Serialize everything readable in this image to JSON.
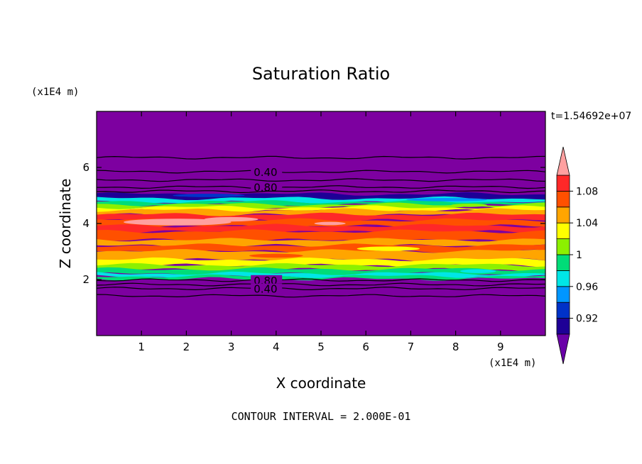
{
  "chart_data": {
    "type": "heatmap",
    "title": "Saturation Ratio",
    "xlabel": "X coordinate",
    "ylabel": "Z coordinate",
    "x_unit": "(x1E4 m)",
    "y_unit": "(x1E4 m)",
    "xlim": [
      0,
      10
    ],
    "ylim": [
      0,
      8
    ],
    "x_ticks": [
      "1",
      "2",
      "3",
      "4",
      "5",
      "6",
      "7",
      "8",
      "9"
    ],
    "y_ticks": [
      "2",
      "4",
      "6"
    ],
    "time_label": "t=1.54692e+07",
    "footer": "CONTOUR INTERVAL = 2.000E-01",
    "colorbar": {
      "levels": [
        0.9,
        0.92,
        0.94,
        0.96,
        0.98,
        1.0,
        1.02,
        1.04,
        1.06,
        1.08,
        1.1
      ],
      "labels": [
        "0.92",
        "0.96",
        "1",
        "1.04",
        "1.08"
      ],
      "label_values": [
        0.92,
        0.96,
        1.0,
        1.04,
        1.08
      ],
      "colors": [
        "#6a00a8",
        "#1e0096",
        "#0032c8",
        "#0096ff",
        "#00e6e6",
        "#00dc78",
        "#8cf000",
        "#ffff00",
        "#ffa500",
        "#ff5000",
        "#ff2828",
        "#ffa0a0"
      ],
      "under_color": "#6a00a8",
      "over_color": "#ffa0a0"
    },
    "field": {
      "background_color": "#7d00a0",
      "bands": [
        {
          "z0": 4.85,
          "z1": 5.05,
          "color": "#1e0096"
        },
        {
          "z0": 4.75,
          "z1": 4.9,
          "color": "#00e6e6"
        },
        {
          "z0": 4.65,
          "z1": 4.78,
          "color": "#00dc78"
        },
        {
          "z0": 4.55,
          "z1": 4.68,
          "color": "#8cf000"
        },
        {
          "z0": 4.45,
          "z1": 4.58,
          "color": "#ffff00"
        },
        {
          "z0": 4.3,
          "z1": 4.48,
          "color": "#ffa500"
        },
        {
          "z0": 4.1,
          "z1": 4.32,
          "color": "#ff2828"
        },
        {
          "z0": 3.9,
          "z1": 4.12,
          "color": "#ff5000"
        },
        {
          "z0": 3.7,
          "z1": 3.92,
          "color": "#ff2828"
        },
        {
          "z0": 3.4,
          "z1": 3.72,
          "color": "#ff5000"
        },
        {
          "z0": 3.2,
          "z1": 3.42,
          "color": "#ffa500"
        },
        {
          "z0": 3.0,
          "z1": 3.22,
          "color": "#ff5000"
        },
        {
          "z0": 2.7,
          "z1": 3.02,
          "color": "#ffa500"
        },
        {
          "z0": 2.5,
          "z1": 2.72,
          "color": "#ffff00"
        },
        {
          "z0": 2.35,
          "z1": 2.52,
          "color": "#8cf000"
        },
        {
          "z0": 2.2,
          "z1": 2.37,
          "color": "#00dc78"
        },
        {
          "z0": 2.1,
          "z1": 2.22,
          "color": "#00e6e6"
        },
        {
          "z0": 2.02,
          "z1": 2.12,
          "color": "#00dc78"
        }
      ],
      "patches": [
        {
          "x": 1.8,
          "z": 4.05,
          "rx": 1.2,
          "rz": 0.12,
          "color": "#ffa0a0"
        },
        {
          "x": 3.0,
          "z": 4.15,
          "rx": 0.6,
          "rz": 0.08,
          "color": "#ffa0a0"
        },
        {
          "x": 5.2,
          "z": 4.0,
          "rx": 0.35,
          "rz": 0.06,
          "color": "#ffa0a0"
        },
        {
          "x": 8.3,
          "z": 4.65,
          "rx": 0.4,
          "rz": 0.06,
          "color": "#8cf000"
        },
        {
          "x": 6.5,
          "z": 3.1,
          "rx": 0.7,
          "rz": 0.08,
          "color": "#ffff00"
        },
        {
          "x": 4.0,
          "z": 2.85,
          "rx": 0.6,
          "rz": 0.07,
          "color": "#ff5000"
        },
        {
          "x": 8.5,
          "z": 2.3,
          "rx": 0.4,
          "rz": 0.07,
          "color": "#00e6e6"
        },
        {
          "x": 2.5,
          "z": 5.0,
          "rx": 0.8,
          "rz": 0.06,
          "color": "#0032c8"
        },
        {
          "x": 7.8,
          "z": 4.85,
          "rx": 0.9,
          "rz": 0.06,
          "color": "#0096ff"
        }
      ]
    },
    "contours": [
      {
        "level": "0.40",
        "z": 6.35
      },
      {
        "level": "0.40",
        "z": 5.85,
        "label": "0.40",
        "label_x": 3.5
      },
      {
        "level": "0.60",
        "z": 5.55
      },
      {
        "level": "0.80",
        "z": 5.3,
        "label": "0.80",
        "label_x": 3.5
      },
      {
        "level": "0.80",
        "z": 5.15
      },
      {
        "level": "0.80",
        "z": 1.98,
        "label": "0.80",
        "label_x": 3.5
      },
      {
        "level": "0.60",
        "z": 1.82
      },
      {
        "level": "0.40",
        "z": 1.68,
        "label": "0.40",
        "label_x": 3.5
      },
      {
        "level": "0.20",
        "z": 1.42
      }
    ]
  }
}
